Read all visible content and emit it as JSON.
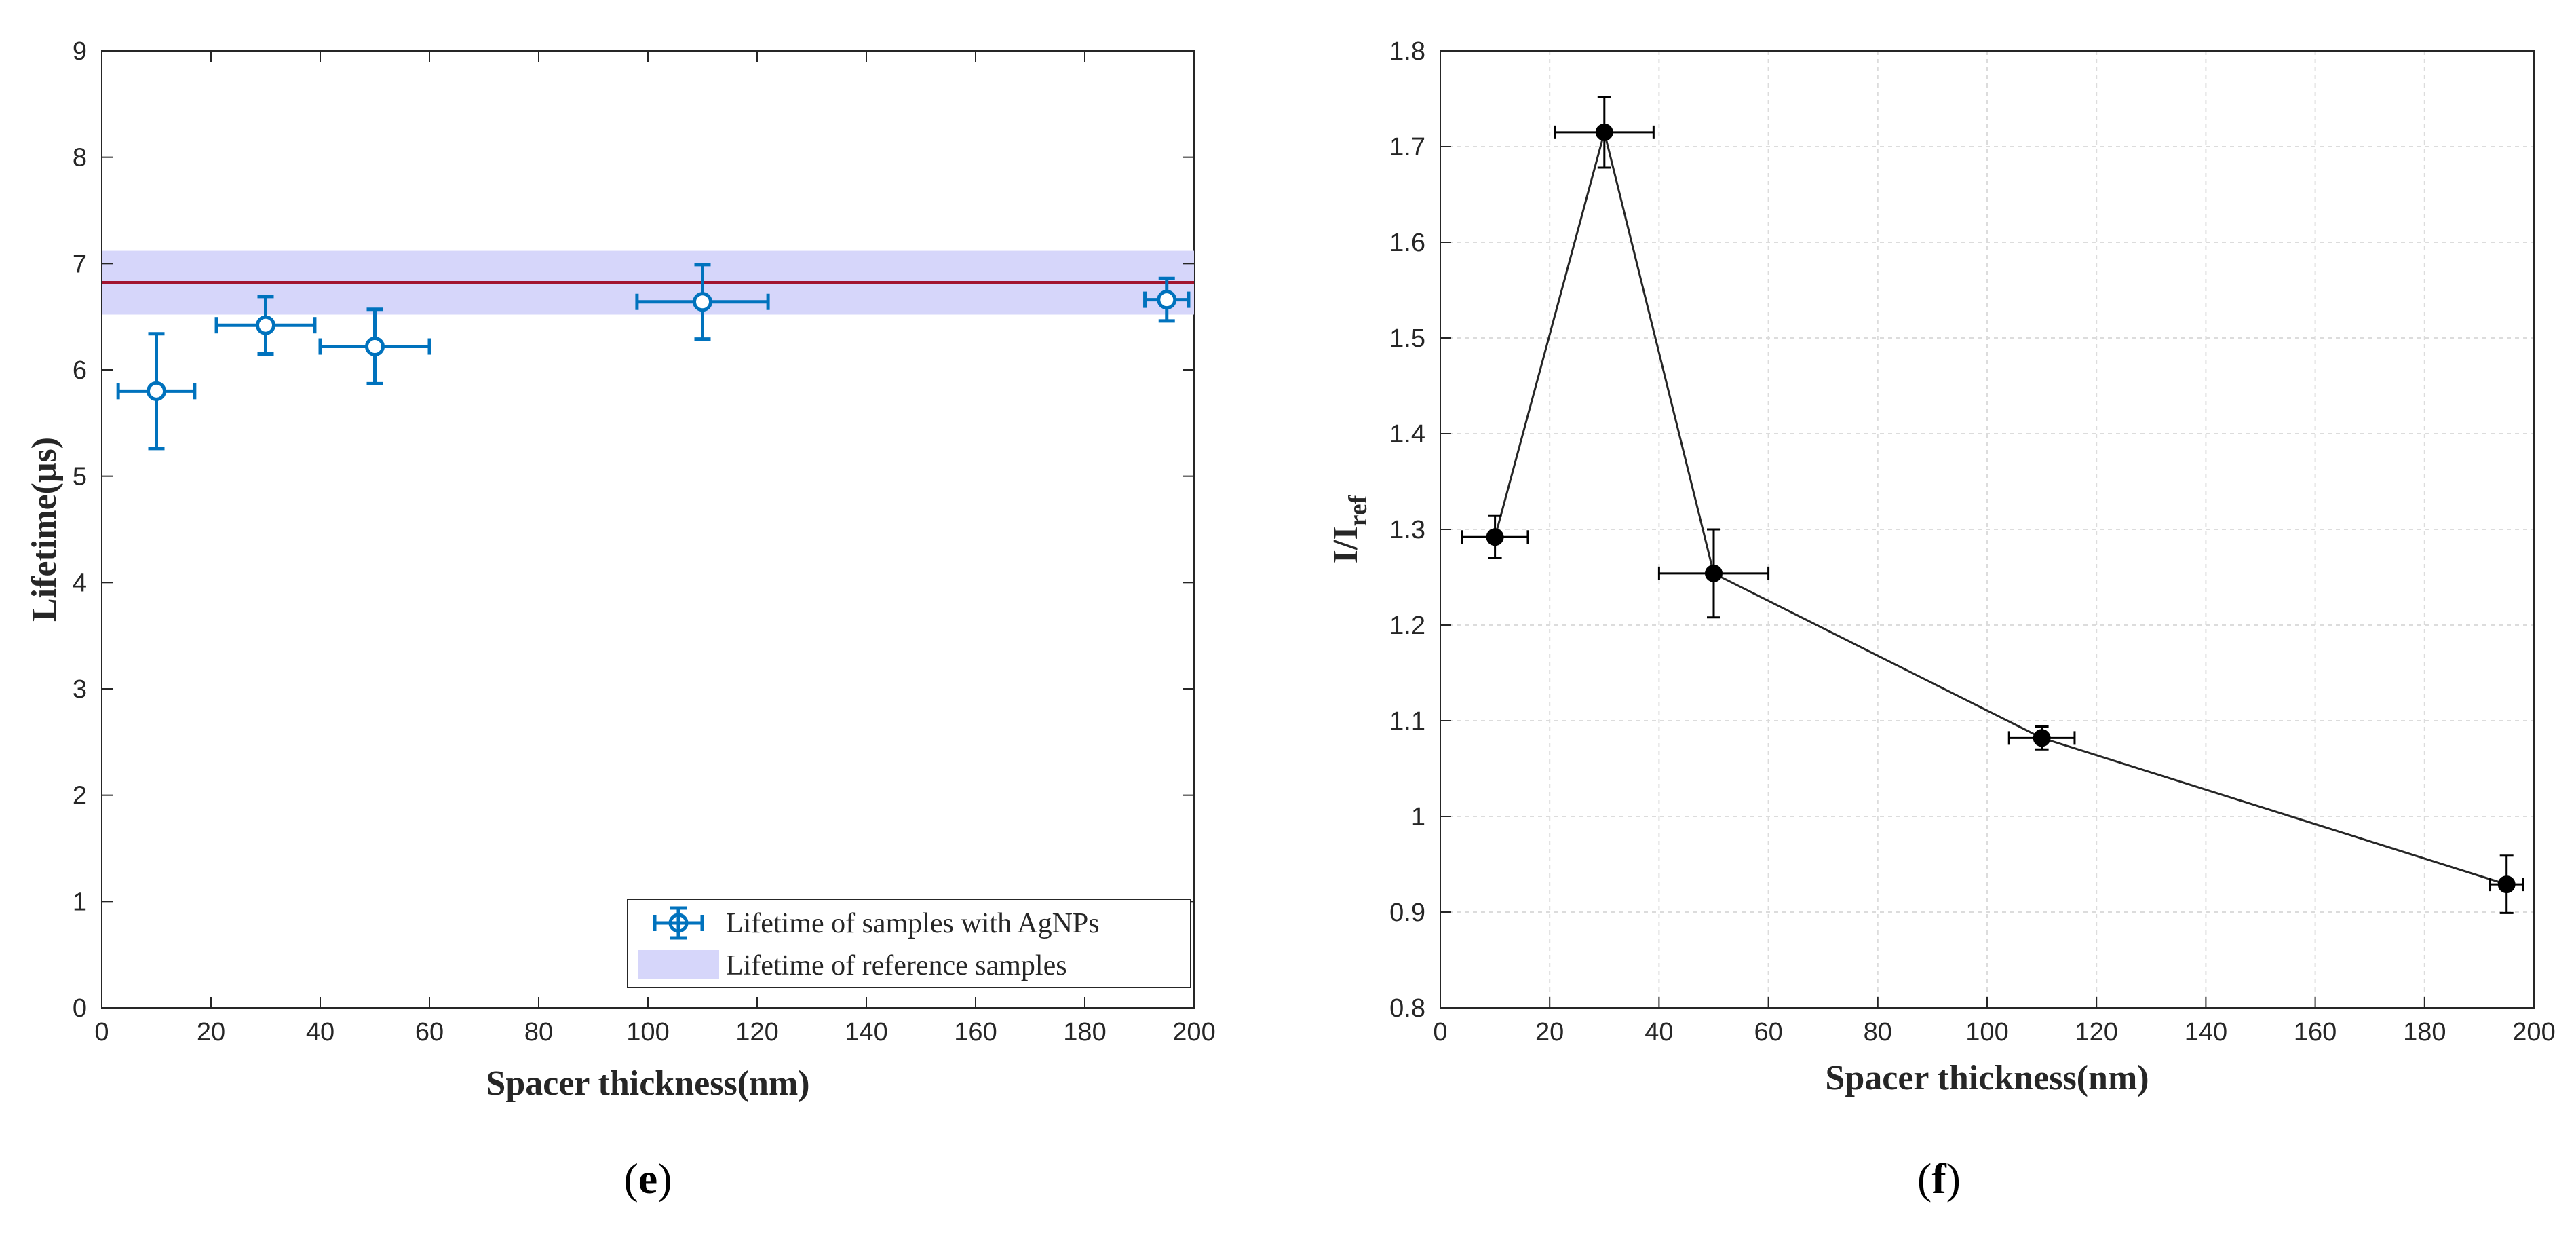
{
  "chart_data": [
    {
      "panel": "(e)",
      "type": "scatter",
      "title": "",
      "xlabel": "Spacer thickness(nm)",
      "ylabel": "Lifetime(μs)",
      "xlim": [
        0,
        200
      ],
      "ylim": [
        0,
        9
      ],
      "xticks": [
        0,
        20,
        40,
        60,
        80,
        100,
        120,
        140,
        160,
        180,
        200
      ],
      "yticks": [
        0,
        1,
        2,
        3,
        4,
        5,
        6,
        7,
        8,
        9
      ],
      "grid": false,
      "legend_position": "bottom-right",
      "series": [
        {
          "name": "Lifetime of samples with AgNPs",
          "color": "#0072BD",
          "marker": "open-circle",
          "x": [
            10,
            30,
            50,
            110,
            195
          ],
          "y": [
            5.8,
            6.42,
            6.22,
            6.64,
            6.66
          ],
          "yerr": [
            0.54,
            0.27,
            0.35,
            0.35,
            0.2
          ],
          "xerr": [
            7,
            9,
            10,
            12,
            4
          ]
        }
      ],
      "reference": {
        "name": "Lifetime of reference samples",
        "band_color": "#D6D6FA",
        "line_color": "#A2142F",
        "value": 6.82,
        "band": [
          6.52,
          7.12
        ]
      }
    },
    {
      "panel": "(f)",
      "type": "line",
      "title": "",
      "xlabel": "Spacer thickness(nm)",
      "ylabel_main": "I/I",
      "ylabel_sub": "ref",
      "xlim": [
        0,
        200
      ],
      "ylim": [
        0.8,
        1.8
      ],
      "xticks": [
        0,
        20,
        40,
        60,
        80,
        100,
        120,
        140,
        160,
        180,
        200
      ],
      "yticks": [
        "0.8",
        "0.9",
        "1",
        "1.1",
        "1.2",
        "1.3",
        "1.4",
        "1.5",
        "1.6",
        "1.7",
        "1.8"
      ],
      "grid": true,
      "series": [
        {
          "name": "I/Iref",
          "color": "#000000",
          "marker": "filled-circle",
          "x": [
            10,
            30,
            50,
            110,
            195
          ],
          "y": [
            1.292,
            1.715,
            1.254,
            1.082,
            0.929
          ],
          "yerr": [
            0.022,
            0.037,
            0.046,
            0.012,
            0.03
          ],
          "xerr": [
            6,
            9,
            10,
            6,
            3
          ]
        }
      ]
    }
  ]
}
